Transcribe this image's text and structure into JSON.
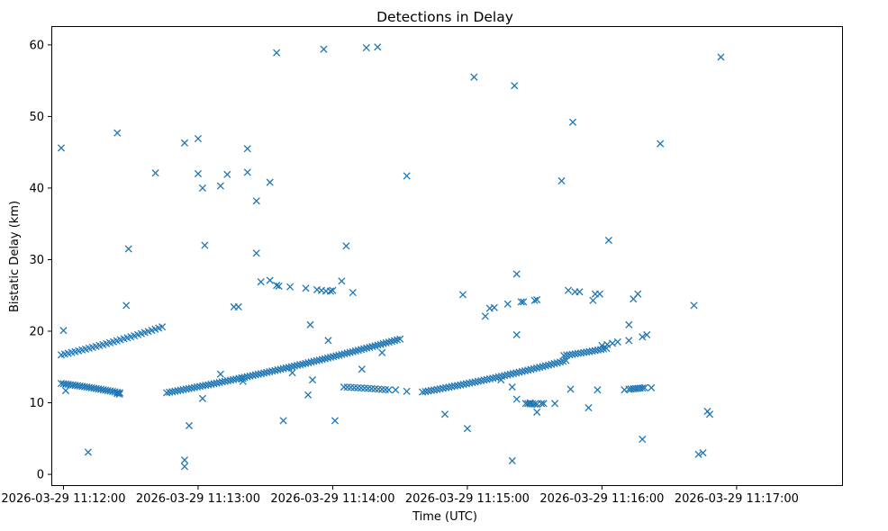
{
  "chart_data": {
    "type": "scatter",
    "title": "Detections in Delay",
    "xlabel": "Time (UTC)",
    "ylabel": "Bistatic Delay (km)",
    "x_unit": "seconds since 2026-03-29 11:12:00",
    "xlim": [
      -5,
      347
    ],
    "ylim": [
      -1.5,
      62.5
    ],
    "x_ticks": [
      {
        "value": 0,
        "label": "2026-03-29 11:12:00"
      },
      {
        "value": 60,
        "label": "2026-03-29 11:13:00"
      },
      {
        "value": 120,
        "label": "2026-03-29 11:14:00"
      },
      {
        "value": 180,
        "label": "2026-03-29 11:15:00"
      },
      {
        "value": 240,
        "label": "2026-03-29 11:16:00"
      },
      {
        "value": 300,
        "label": "2026-03-29 11:17:00"
      }
    ],
    "y_ticks": [
      {
        "value": 0,
        "label": "0"
      },
      {
        "value": 10,
        "label": "10"
      },
      {
        "value": 20,
        "label": "20"
      },
      {
        "value": 30,
        "label": "30"
      },
      {
        "value": 40,
        "label": "40"
      },
      {
        "value": 50,
        "label": "50"
      },
      {
        "value": 60,
        "label": "60"
      }
    ],
    "marker": "x",
    "color": "#1f77b4",
    "tracks": [
      {
        "name": "track-1",
        "x_start": -1,
        "x_end": 44,
        "y_start": 16.7,
        "y_end": 20.6,
        "count": 30
      },
      {
        "name": "track-2",
        "x_start": -1,
        "x_end": 25,
        "y_start": 12.7,
        "y_end": 11.4,
        "count": 26
      },
      {
        "name": "track-3",
        "x_start": 46,
        "x_end": 150,
        "y_start": 11.4,
        "y_end": 18.9,
        "count": 85
      },
      {
        "name": "track-4",
        "x_start": 125,
        "x_end": 145,
        "y_start": 12.2,
        "y_end": 11.8,
        "count": 14
      },
      {
        "name": "track-5",
        "x_start": 160,
        "x_end": 224,
        "y_start": 11.5,
        "y_end": 15.9,
        "count": 50
      },
      {
        "name": "track-6",
        "x_start": 223,
        "x_end": 242,
        "y_start": 16.6,
        "y_end": 17.6,
        "count": 16
      },
      {
        "name": "track-7",
        "x_start": 240,
        "x_end": 247,
        "y_start": 18.0,
        "y_end": 18.5,
        "count": 4
      },
      {
        "name": "track-8",
        "x_start": 252,
        "x_end": 259,
        "y_start": 11.9,
        "y_end": 12.1,
        "count": 8
      },
      {
        "name": "track-9",
        "x_start": 206,
        "x_end": 211,
        "y_start": 9.9,
        "y_end": 9.8,
        "count": 6
      }
    ],
    "outliers": [
      [
        -1,
        45.6
      ],
      [
        0,
        20.1
      ],
      [
        1,
        11.7
      ],
      [
        11,
        3.1
      ],
      [
        24,
        11.3
      ],
      [
        25,
        11.4
      ],
      [
        25,
        11.2
      ],
      [
        24,
        47.7
      ],
      [
        29,
        31.5
      ],
      [
        28,
        23.6
      ],
      [
        41,
        42.1
      ],
      [
        54,
        46.3
      ],
      [
        54,
        2.0
      ],
      [
        54,
        1.1
      ],
      [
        56,
        6.8
      ],
      [
        60,
        46.9
      ],
      [
        60,
        42.0
      ],
      [
        62,
        40.0
      ],
      [
        62,
        10.6
      ],
      [
        63,
        32.0
      ],
      [
        70,
        40.3
      ],
      [
        70,
        14.0
      ],
      [
        73,
        41.9
      ],
      [
        76,
        23.4
      ],
      [
        78,
        23.4
      ],
      [
        80,
        13.4
      ],
      [
        80,
        13.0
      ],
      [
        82,
        45.5
      ],
      [
        82,
        42.2
      ],
      [
        86,
        30.9
      ],
      [
        88,
        26.9
      ],
      [
        86,
        38.2
      ],
      [
        92,
        40.8
      ],
      [
        92,
        27.1
      ],
      [
        95,
        58.9
      ],
      [
        95,
        26.4
      ],
      [
        96,
        26.3
      ],
      [
        98,
        7.5
      ],
      [
        101,
        26.2
      ],
      [
        102,
        14.2
      ],
      [
        108,
        26.0
      ],
      [
        109,
        11.1
      ],
      [
        110,
        20.9
      ],
      [
        111,
        13.2
      ],
      [
        113,
        25.8
      ],
      [
        115,
        25.7
      ],
      [
        116,
        59.4
      ],
      [
        117,
        25.6
      ],
      [
        119,
        25.6
      ],
      [
        118,
        18.7
      ],
      [
        120,
        25.7
      ],
      [
        121,
        7.5
      ],
      [
        124,
        27.0
      ],
      [
        126,
        31.9
      ],
      [
        129,
        25.4
      ],
      [
        133,
        14.7
      ],
      [
        135,
        59.6
      ],
      [
        140,
        59.7
      ],
      [
        142,
        17.0
      ],
      [
        148,
        11.8
      ],
      [
        153,
        41.7
      ],
      [
        153,
        11.6
      ],
      [
        170,
        8.4
      ],
      [
        178,
        25.1
      ],
      [
        180,
        6.4
      ],
      [
        183,
        55.5
      ],
      [
        188,
        22.1
      ],
      [
        190,
        23.2
      ],
      [
        192,
        23.3
      ],
      [
        195,
        13.2
      ],
      [
        198,
        23.8
      ],
      [
        200,
        12.2
      ],
      [
        201,
        54.3
      ],
      [
        200,
        1.9
      ],
      [
        202,
        28.0
      ],
      [
        202,
        19.5
      ],
      [
        202,
        10.5
      ],
      [
        204,
        24.1
      ],
      [
        205,
        24.1
      ],
      [
        208,
        10.0
      ],
      [
        210,
        24.3
      ],
      [
        211,
        24.4
      ],
      [
        211,
        8.7
      ],
      [
        213,
        9.9
      ],
      [
        214,
        9.9
      ],
      [
        219,
        9.9
      ],
      [
        222,
        41.0
      ],
      [
        225,
        25.7
      ],
      [
        226,
        11.9
      ],
      [
        227,
        49.2
      ],
      [
        228,
        25.5
      ],
      [
        230,
        25.5
      ],
      [
        234,
        9.3
      ],
      [
        236,
        24.3
      ],
      [
        237,
        25.2
      ],
      [
        238,
        11.8
      ],
      [
        239,
        25.2
      ],
      [
        243,
        32.7
      ],
      [
        250,
        11.8
      ],
      [
        252,
        20.9
      ],
      [
        252,
        18.7
      ],
      [
        254,
        24.5
      ],
      [
        256,
        25.2
      ],
      [
        258,
        4.9
      ],
      [
        258,
        19.2
      ],
      [
        260,
        19.5
      ],
      [
        262,
        12.1
      ],
      [
        266,
        46.2
      ],
      [
        281,
        23.6
      ],
      [
        283,
        2.8
      ],
      [
        285,
        3.0
      ],
      [
        287,
        8.8
      ],
      [
        288,
        8.4
      ],
      [
        293,
        58.3
      ]
    ]
  }
}
